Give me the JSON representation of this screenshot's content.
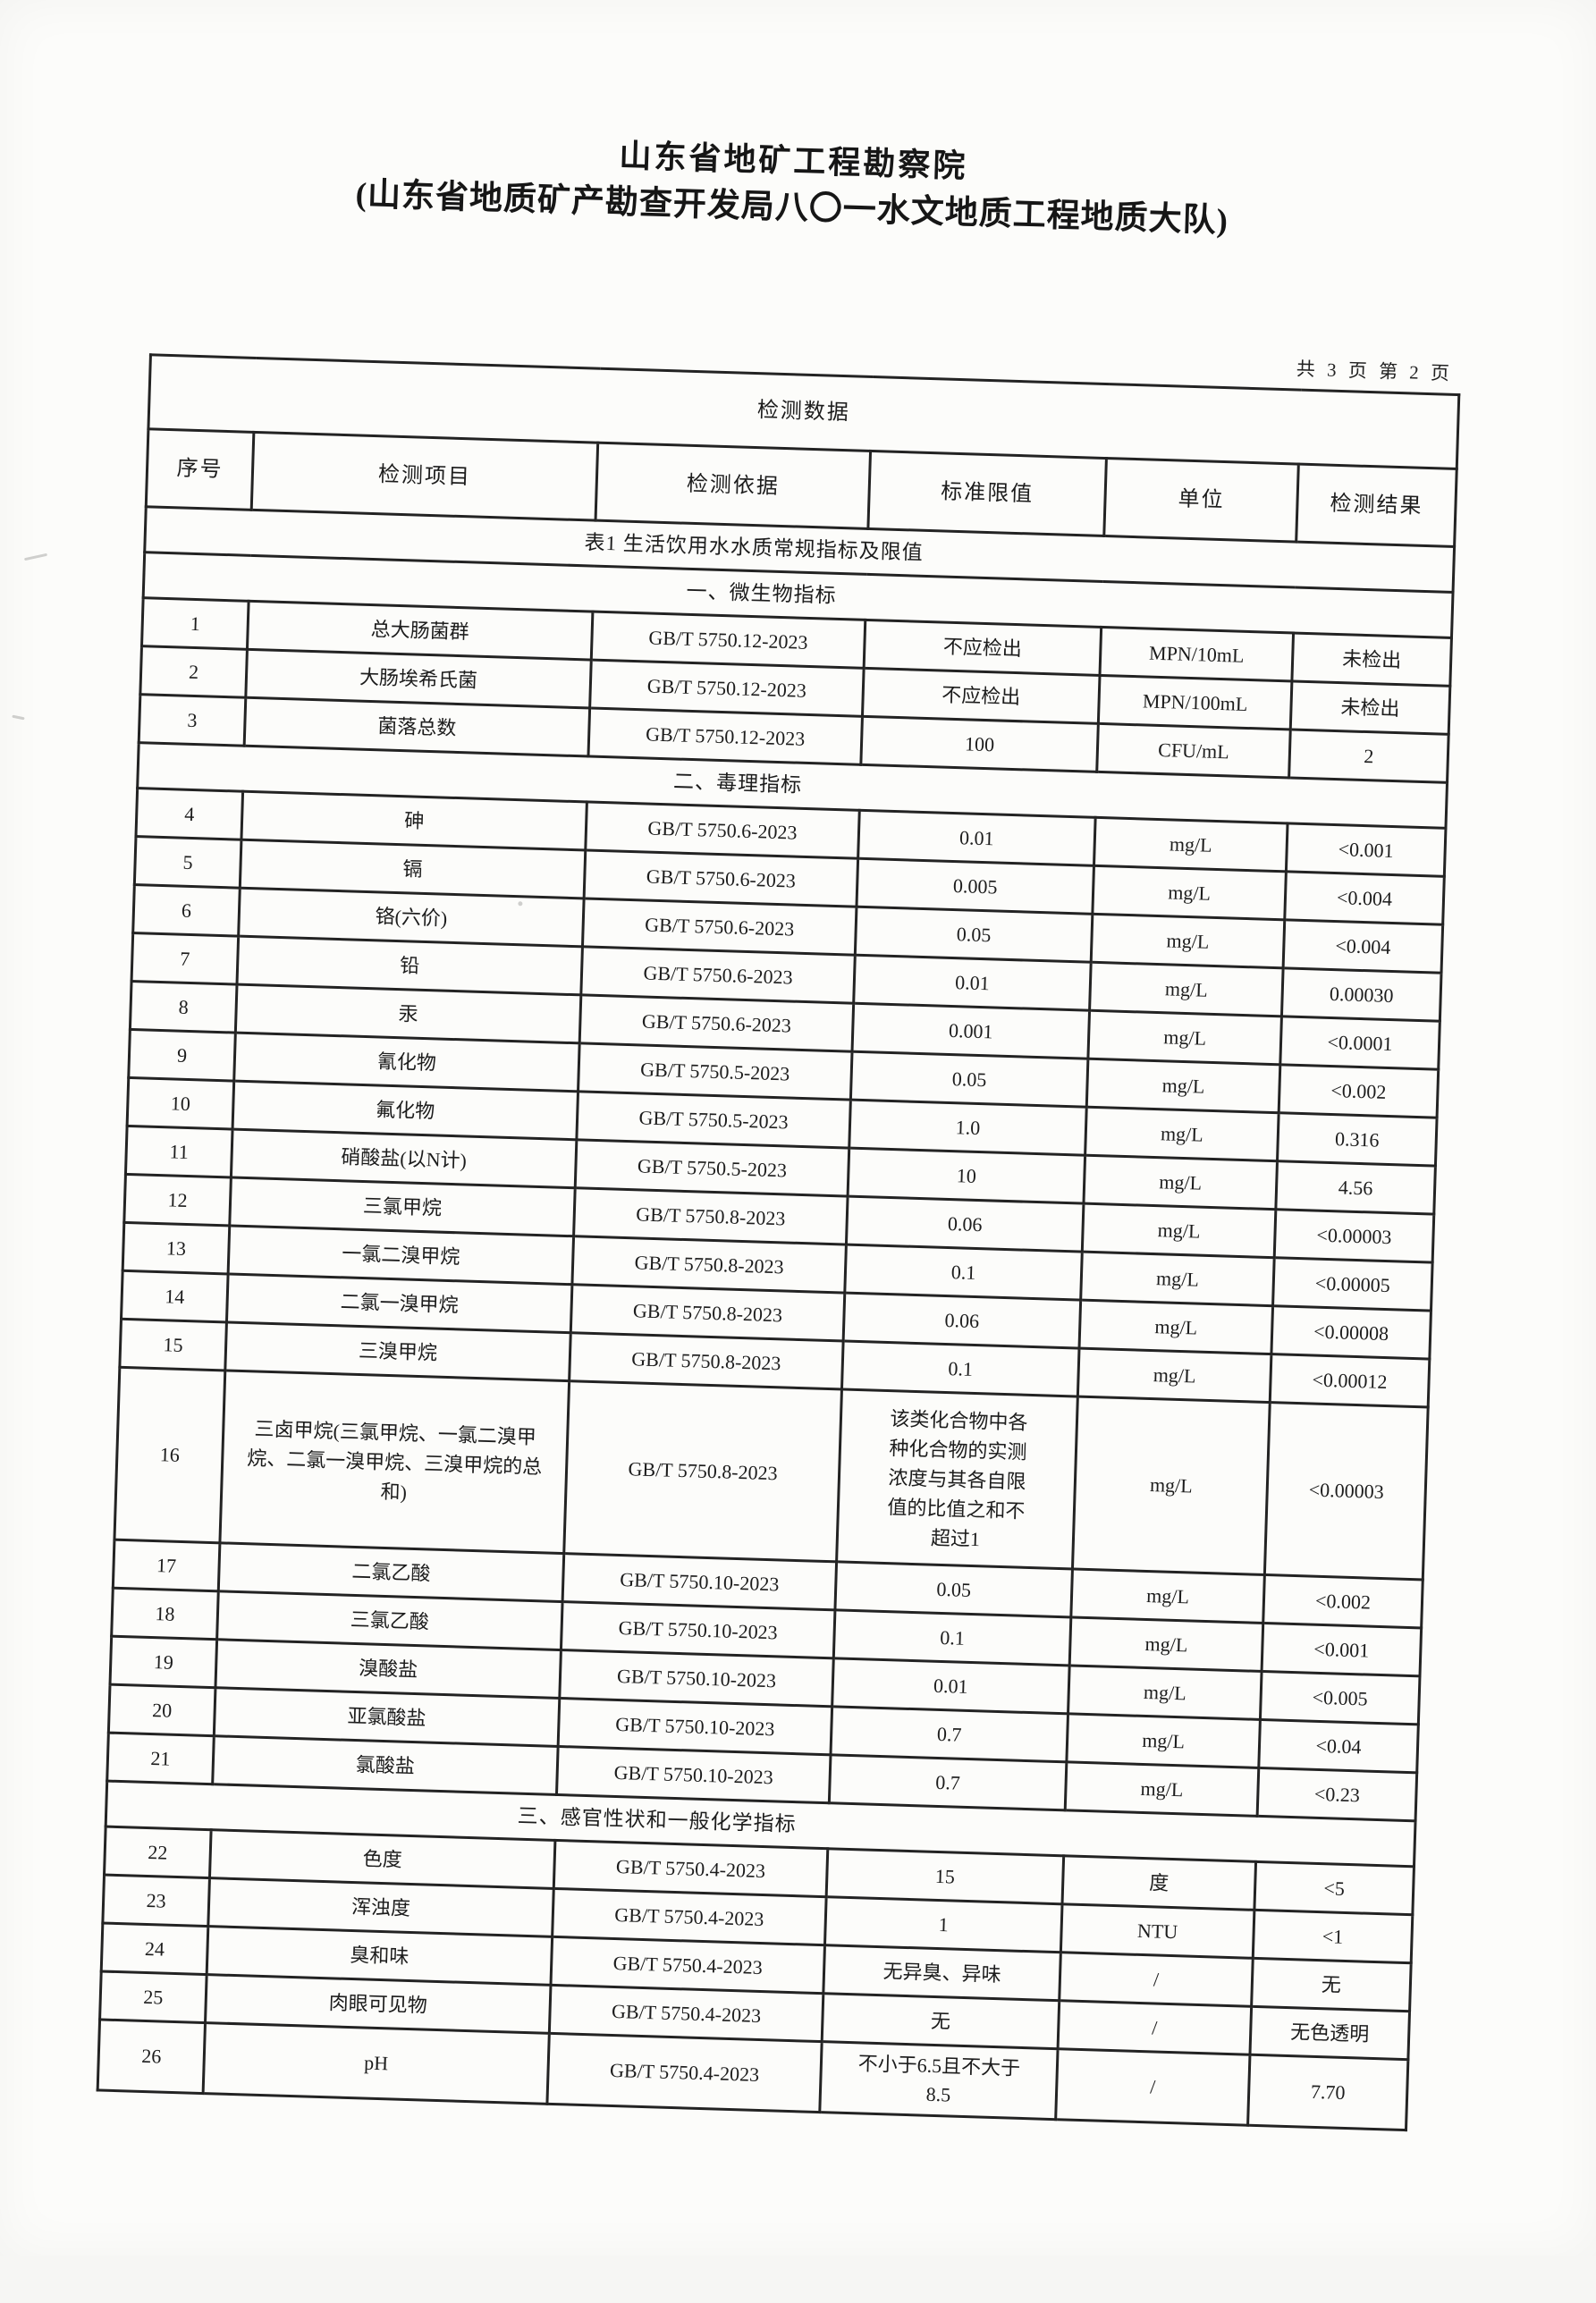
{
  "page": {
    "org_title_line1": "山东省地矿工程勘察院",
    "org_title_line2": "(山东省地质矿产勘查开发局八〇一水文地质工程地质大队)",
    "page_count": "共 3 页 第 2 页"
  },
  "table": {
    "title": "检测数据",
    "columns": [
      "序号",
      "检测项目",
      "检测依据",
      "标准限值",
      "单位",
      "检测结果"
    ],
    "subtitle": "表1  生活饮用水水质常规指标及限值",
    "sections": [
      {
        "name": "一、微生物指标",
        "rows": [
          [
            "1",
            "总大肠菌群",
            "GB/T 5750.12-2023",
            "不应检出",
            "MPN/10mL",
            "未检出"
          ],
          [
            "2",
            "大肠埃希氏菌",
            "GB/T 5750.12-2023",
            "不应检出",
            "MPN/100mL",
            "未检出"
          ],
          [
            "3",
            "菌落总数",
            "GB/T 5750.12-2023",
            "100",
            "CFU/mL",
            "2"
          ]
        ]
      },
      {
        "name": "二、毒理指标",
        "rows": [
          [
            "4",
            "砷",
            "GB/T 5750.6-2023",
            "0.01",
            "mg/L",
            "<0.001"
          ],
          [
            "5",
            "镉",
            "GB/T 5750.6-2023",
            "0.005",
            "mg/L",
            "<0.004"
          ],
          [
            "6",
            "铬(六价)",
            "GB/T 5750.6-2023",
            "0.05",
            "mg/L",
            "<0.004"
          ],
          [
            "7",
            "铅",
            "GB/T 5750.6-2023",
            "0.01",
            "mg/L",
            "0.00030"
          ],
          [
            "8",
            "汞",
            "GB/T 5750.6-2023",
            "0.001",
            "mg/L",
            "<0.0001"
          ],
          [
            "9",
            "氰化物",
            "GB/T 5750.5-2023",
            "0.05",
            "mg/L",
            "<0.002"
          ],
          [
            "10",
            "氟化物",
            "GB/T 5750.5-2023",
            "1.0",
            "mg/L",
            "0.316"
          ],
          [
            "11",
            "硝酸盐(以N计)",
            "GB/T 5750.5-2023",
            "10",
            "mg/L",
            "4.56"
          ],
          [
            "12",
            "三氯甲烷",
            "GB/T 5750.8-2023",
            "0.06",
            "mg/L",
            "<0.00003"
          ],
          [
            "13",
            "一氯二溴甲烷",
            "GB/T 5750.8-2023",
            "0.1",
            "mg/L",
            "<0.00005"
          ],
          [
            "14",
            "二氯一溴甲烷",
            "GB/T 5750.8-2023",
            "0.06",
            "mg/L",
            "<0.00008"
          ],
          [
            "15",
            "三溴甲烷",
            "GB/T 5750.8-2023",
            "0.1",
            "mg/L",
            "<0.00012"
          ],
          [
            "16",
            "三卤甲烷(三氯甲烷、一氯二溴甲烷、二氯一溴甲烷、三溴甲烷的总和)",
            "GB/T 5750.8-2023",
            "该类化合物中各种化合物的实测浓度与其各自限值的比值之和不超过1",
            "mg/L",
            "<0.00003"
          ],
          [
            "17",
            "二氯乙酸",
            "GB/T 5750.10-2023",
            "0.05",
            "mg/L",
            "<0.002"
          ],
          [
            "18",
            "三氯乙酸",
            "GB/T 5750.10-2023",
            "0.1",
            "mg/L",
            "<0.001"
          ],
          [
            "19",
            "溴酸盐",
            "GB/T 5750.10-2023",
            "0.01",
            "mg/L",
            "<0.005"
          ],
          [
            "20",
            "亚氯酸盐",
            "GB/T 5750.10-2023",
            "0.7",
            "mg/L",
            "<0.04"
          ],
          [
            "21",
            "氯酸盐",
            "GB/T 5750.10-2023",
            "0.7",
            "mg/L",
            "<0.23"
          ]
        ]
      },
      {
        "name": "三、感官性状和一般化学指标",
        "rows": [
          [
            "22",
            "色度",
            "GB/T 5750.4-2023",
            "15",
            "度",
            "<5"
          ],
          [
            "23",
            "浑浊度",
            "GB/T 5750.4-2023",
            "1",
            "NTU",
            "<1"
          ],
          [
            "24",
            "臭和味",
            "GB/T 5750.4-2023",
            "无异臭、异味",
            "/",
            "无"
          ],
          [
            "25",
            "肉眼可见物",
            "GB/T 5750.4-2023",
            "无",
            "/",
            "无色透明"
          ],
          [
            "26",
            "pH",
            "GB/T 5750.4-2023",
            "不小于6.5且不大于8.5",
            "/",
            "7.70"
          ]
        ]
      }
    ]
  }
}
